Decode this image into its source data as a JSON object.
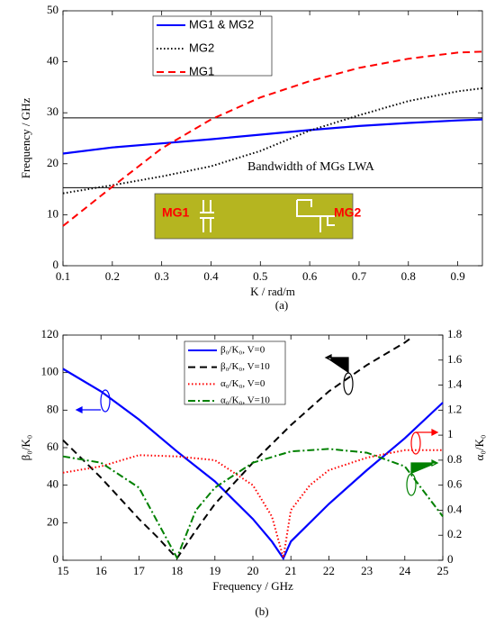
{
  "chart_data": [
    {
      "type": "line",
      "caption": "(a)",
      "xlabel": "K / rad/m",
      "ylabel": "Frequency / GHz",
      "xlim": [
        0.1,
        0.95
      ],
      "xticks": [
        0.1,
        0.2,
        0.3,
        0.4,
        0.5,
        0.6,
        0.7,
        0.8,
        0.9
      ],
      "ylim": [
        0,
        50
      ],
      "yticks": [
        0,
        10,
        20,
        30,
        40,
        50
      ],
      "hlines": [
        29,
        15.3
      ],
      "annotation": "Bandwidth of MGs LWA",
      "inset_labels": [
        "MG1",
        "MG2"
      ],
      "series": [
        {
          "name": "MG1 & MG2",
          "color": "#0000ff",
          "style": "solid",
          "x": [
            0.1,
            0.2,
            0.3,
            0.4,
            0.5,
            0.6,
            0.7,
            0.8,
            0.9,
            0.95
          ],
          "values": [
            22,
            23.2,
            24,
            24.8,
            25.7,
            26.6,
            27.4,
            28,
            28.5,
            28.7
          ]
        },
        {
          "name": "MG2",
          "color": "#000000",
          "style": "dotted",
          "x": [
            0.1,
            0.2,
            0.3,
            0.4,
            0.5,
            0.6,
            0.7,
            0.8,
            0.9,
            0.95
          ],
          "values": [
            14.2,
            15.8,
            17.5,
            19.5,
            22.5,
            26.5,
            29.5,
            32.3,
            34.2,
            34.8
          ]
        },
        {
          "name": "MG1",
          "color": "#ff0000",
          "style": "dashed",
          "x": [
            0.1,
            0.2,
            0.3,
            0.4,
            0.5,
            0.6,
            0.7,
            0.8,
            0.9,
            0.95
          ],
          "values": [
            7.8,
            15.5,
            23,
            28.7,
            33,
            36.2,
            38.8,
            40.6,
            41.8,
            42
          ]
        }
      ]
    },
    {
      "type": "line",
      "caption": "(b)",
      "xlabel": "Frequency / GHz",
      "ylabel": "β₀/K₀",
      "y2label": "α₀/K₀",
      "xlim": [
        15,
        25
      ],
      "xticks": [
        15,
        16,
        17,
        18,
        19,
        20,
        21,
        22,
        23,
        24,
        25
      ],
      "ylim": [
        0,
        120
      ],
      "yticks": [
        0,
        20,
        40,
        60,
        80,
        100,
        120
      ],
      "y2lim": [
        0,
        1.8
      ],
      "y2ticks": [
        0,
        0.2,
        0.4,
        0.6,
        0.8,
        1,
        1.2,
        1.4,
        1.6,
        1.8
      ],
      "series": [
        {
          "name": "β₀/K₀, V=0",
          "color": "#0000ff",
          "style": "solid",
          "x": [
            15,
            16,
            17,
            18,
            19,
            20,
            20.5,
            20.8,
            21,
            22,
            23,
            24,
            25
          ],
          "values": [
            102,
            90,
            75,
            58,
            42,
            22,
            10,
            1,
            10,
            30,
            48,
            65,
            84
          ]
        },
        {
          "name": "β₀/K₀, V=10",
          "color": "#000000",
          "style": "dashed",
          "x": [
            15,
            16,
            17,
            17.5,
            18,
            18.5,
            19,
            20,
            21,
            22,
            23,
            24,
            24.2
          ],
          "values": [
            64,
            44,
            22,
            12,
            1,
            16,
            30,
            52,
            72,
            90,
            104,
            116,
            119
          ]
        },
        {
          "name": "α₀/K₀, V=0",
          "color": "#ff0000",
          "style": "dotted",
          "axis": "y2",
          "x": [
            15,
            16,
            17,
            18,
            19,
            20,
            20.5,
            20.8,
            21,
            21.5,
            22,
            23,
            24,
            25
          ],
          "values": [
            0.7,
            0.75,
            0.84,
            0.83,
            0.8,
            0.6,
            0.35,
            0.02,
            0.4,
            0.6,
            0.72,
            0.82,
            0.88,
            0.88
          ]
        },
        {
          "name": "α₀/K₀, V=10",
          "color": "#008000",
          "style": "dashdot",
          "axis": "y2",
          "x": [
            15,
            16,
            17,
            17.5,
            18,
            18.5,
            19,
            20,
            21,
            22,
            23,
            24,
            25
          ],
          "values": [
            0.83,
            0.78,
            0.58,
            0.3,
            0.02,
            0.4,
            0.58,
            0.78,
            0.87,
            0.89,
            0.86,
            0.75,
            0.35
          ]
        }
      ]
    }
  ]
}
